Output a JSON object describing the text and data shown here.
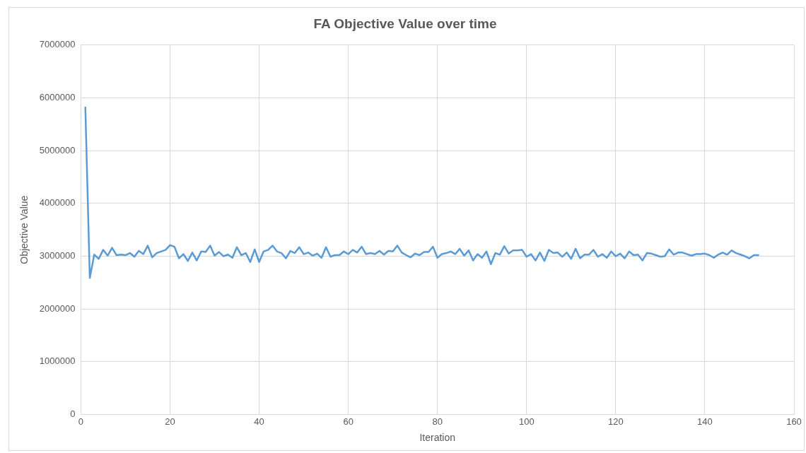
{
  "chart_data": {
    "type": "line",
    "title": "FA Objective Value over time",
    "xlabel": "Iteration",
    "ylabel": "Objective Value",
    "x": [
      1,
      2,
      3,
      4,
      5,
      6,
      7,
      8,
      9,
      10,
      11,
      12,
      13,
      14,
      15,
      16,
      17,
      18,
      19,
      20,
      21,
      22,
      23,
      24,
      25,
      26,
      27,
      28,
      29,
      30,
      31,
      32,
      33,
      34,
      35,
      36,
      37,
      38,
      39,
      40,
      41,
      42,
      43,
      44,
      45,
      46,
      47,
      48,
      49,
      50,
      51,
      52,
      53,
      54,
      55,
      56,
      57,
      58,
      59,
      60,
      61,
      62,
      63,
      64,
      65,
      66,
      67,
      68,
      69,
      70,
      71,
      72,
      73,
      74,
      75,
      76,
      77,
      78,
      79,
      80,
      81,
      82,
      83,
      84,
      85,
      86,
      87,
      88,
      89,
      90,
      91,
      92,
      93,
      94,
      95,
      96,
      97,
      98,
      99,
      100,
      101,
      102,
      103,
      104,
      105,
      106,
      107,
      108,
      109,
      110,
      111,
      112,
      113,
      114,
      115,
      116,
      117,
      118,
      119,
      120,
      121,
      122,
      123,
      124,
      125,
      126,
      127,
      128,
      129,
      130,
      131,
      132,
      133,
      134,
      135,
      136,
      137,
      138,
      139,
      140,
      141,
      142,
      143,
      144,
      145,
      146,
      147,
      148,
      149,
      150,
      151,
      152
    ],
    "series": [
      {
        "color": "#5b9bd5",
        "values": [
          5820000,
          2590000,
          3030000,
          2950000,
          3120000,
          3010000,
          3160000,
          3020000,
          3030000,
          3020000,
          3060000,
          2990000,
          3100000,
          3040000,
          3200000,
          2980000,
          3060000,
          3090000,
          3120000,
          3210000,
          3180000,
          2960000,
          3040000,
          2910000,
          3070000,
          2920000,
          3090000,
          3080000,
          3200000,
          3010000,
          3080000,
          3000000,
          3030000,
          2970000,
          3170000,
          3020000,
          3060000,
          2890000,
          3130000,
          2890000,
          3090000,
          3120000,
          3200000,
          3090000,
          3060000,
          2960000,
          3100000,
          3060000,
          3170000,
          3040000,
          3070000,
          3010000,
          3050000,
          2970000,
          3170000,
          2990000,
          3020000,
          3020000,
          3090000,
          3040000,
          3120000,
          3070000,
          3180000,
          3040000,
          3060000,
          3040000,
          3100000,
          3030000,
          3100000,
          3090000,
          3200000,
          3070000,
          3020000,
          2980000,
          3050000,
          3020000,
          3080000,
          3080000,
          3180000,
          2970000,
          3040000,
          3060000,
          3090000,
          3040000,
          3140000,
          3010000,
          3110000,
          2920000,
          3040000,
          2970000,
          3090000,
          2850000,
          3060000,
          3030000,
          3190000,
          3050000,
          3110000,
          3110000,
          3120000,
          2990000,
          3040000,
          2920000,
          3070000,
          2910000,
          3120000,
          3060000,
          3070000,
          2990000,
          3070000,
          2950000,
          3140000,
          2960000,
          3030000,
          3030000,
          3120000,
          2990000,
          3040000,
          2970000,
          3090000,
          3000000,
          3050000,
          2960000,
          3090000,
          3020000,
          3030000,
          2920000,
          3060000,
          3050000,
          3020000,
          2990000,
          3000000,
          3130000,
          3030000,
          3070000,
          3070000,
          3040000,
          3010000,
          3040000,
          3040000,
          3050000,
          3020000,
          2970000,
          3030000,
          3070000,
          3030000,
          3110000,
          3060000,
          3030000,
          3000000,
          2960000,
          3020000,
          3020000
        ]
      }
    ],
    "xlim": [
      0,
      160
    ],
    "xticks": [
      0,
      20,
      40,
      60,
      80,
      100,
      120,
      140,
      160
    ],
    "ylim": [
      0,
      7000000
    ],
    "yticks": [
      0,
      1000000,
      2000000,
      3000000,
      4000000,
      5000000,
      6000000,
      7000000
    ],
    "grid": true,
    "legend": false,
    "marker": "none",
    "line_style": "solid"
  }
}
